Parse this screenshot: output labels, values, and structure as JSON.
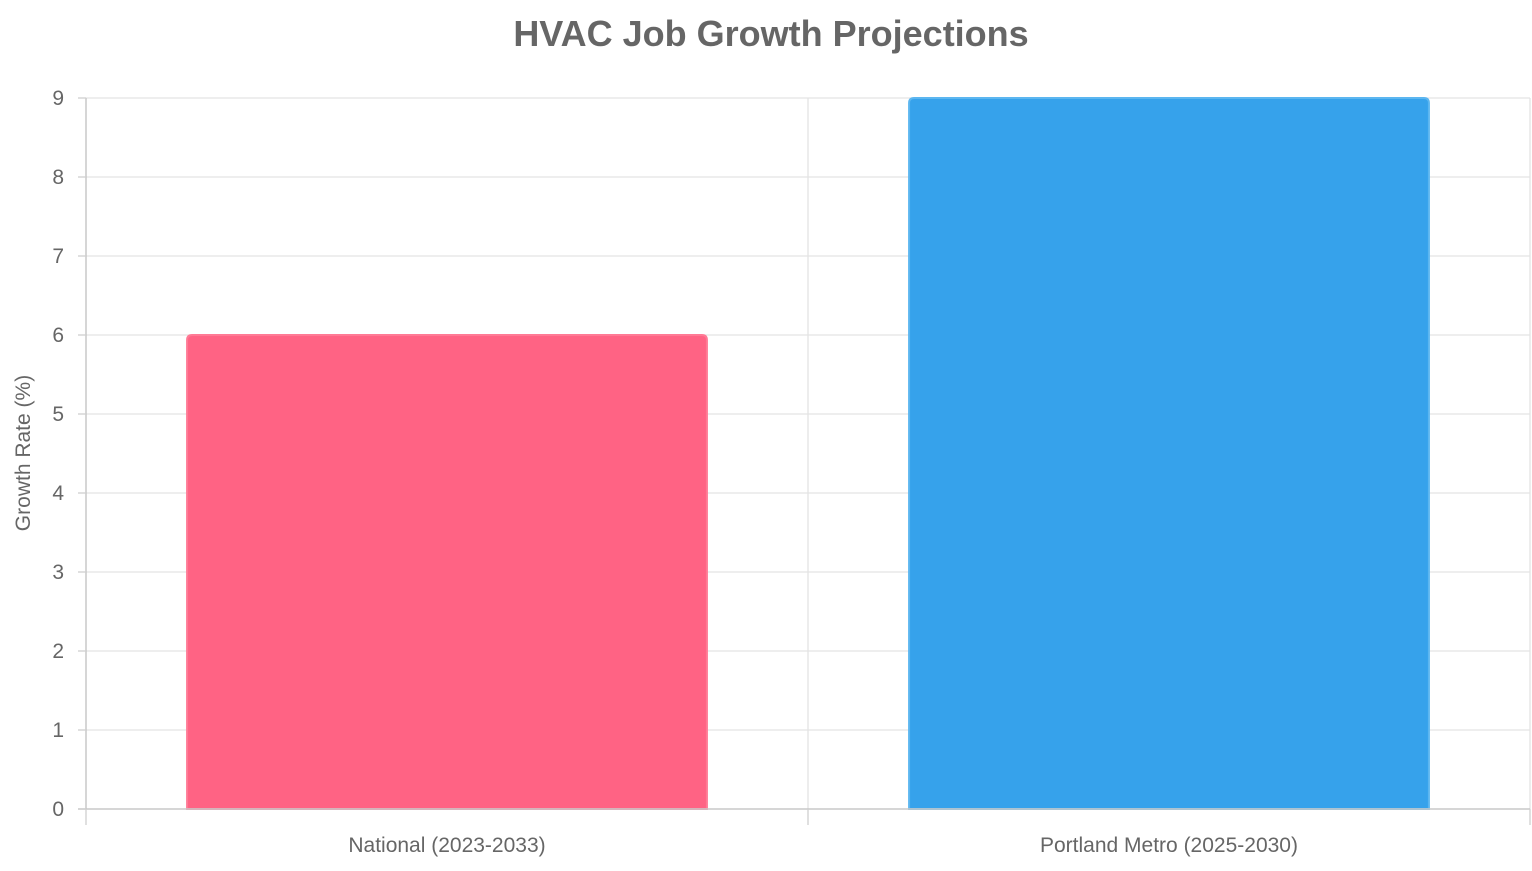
{
  "chart_data": {
    "type": "bar",
    "title": "HVAC Job Growth Projections",
    "xlabel": "",
    "ylabel": "Growth Rate (%)",
    "categories": [
      "National (2023-2033)",
      "Portland Metro (2025-2030)"
    ],
    "values": [
      6,
      9
    ],
    "colors": [
      "#ff6384",
      "#36a2eb"
    ],
    "border_colors": [
      "#ff7a95",
      "#5cb6f0"
    ],
    "ylim": [
      0,
      9
    ],
    "yticks": [
      0,
      1,
      2,
      3,
      4,
      5,
      6,
      7,
      8,
      9
    ],
    "grid": true,
    "legend": "none"
  }
}
